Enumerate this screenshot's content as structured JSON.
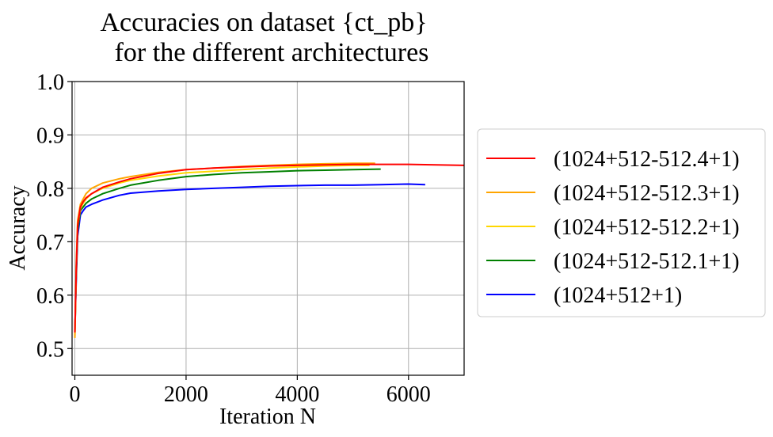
{
  "chart_data": {
    "type": "line",
    "title_lines": [
      "Accuracies on dataset {ct_pb}",
      "for the different architectures"
    ],
    "xlabel": "Iteration N",
    "ylabel": "Accuracy",
    "xlim": [
      -50,
      7000
    ],
    "ylim": [
      0.45,
      1.0
    ],
    "xticks": [
      0,
      2000,
      4000,
      6000
    ],
    "xtick_labels": [
      "0",
      "2000",
      "4000",
      "6000"
    ],
    "yticks": [
      0.5,
      0.6,
      0.7,
      0.8,
      0.9,
      1.0
    ],
    "ytick_labels": [
      "0.5",
      "0.6",
      "0.7",
      "0.8",
      "0.9",
      "1.0"
    ],
    "grid": true,
    "legend_position": "outside-right",
    "series": [
      {
        "name": "(1024+512-512.4+1)",
        "color": "#ff0000",
        "x": [
          0,
          25,
          50,
          100,
          150,
          200,
          300,
          500,
          800,
          1000,
          1500,
          2000,
          2500,
          3000,
          3500,
          4000,
          4500,
          5000,
          5500,
          6000,
          6500,
          7000
        ],
        "y": [
          0.53,
          0.65,
          0.73,
          0.765,
          0.775,
          0.782,
          0.79,
          0.802,
          0.812,
          0.818,
          0.828,
          0.835,
          0.838,
          0.84,
          0.842,
          0.843,
          0.844,
          0.845,
          0.845,
          0.845,
          0.844,
          0.843
        ]
      },
      {
        "name": "(1024+512-512.3+1)",
        "color": "#ffa500",
        "x": [
          0,
          25,
          50,
          100,
          150,
          200,
          300,
          500,
          800,
          1000,
          1500,
          2000,
          2500,
          3000,
          3500,
          4000,
          4500,
          5000,
          5400
        ],
        "y": [
          0.52,
          0.66,
          0.74,
          0.77,
          0.78,
          0.79,
          0.8,
          0.81,
          0.818,
          0.822,
          0.83,
          0.835,
          0.838,
          0.841,
          0.843,
          0.845,
          0.846,
          0.847,
          0.847
        ]
      },
      {
        "name": "(1024+512-512.2+1)",
        "color": "#ffd700",
        "x": [
          0,
          25,
          50,
          100,
          150,
          200,
          300,
          500,
          800,
          1000,
          1500,
          2000,
          2500,
          3000,
          3500,
          4000,
          4500,
          5000,
          5300
        ],
        "y": [
          0.52,
          0.65,
          0.73,
          0.762,
          0.772,
          0.78,
          0.79,
          0.8,
          0.81,
          0.815,
          0.823,
          0.829,
          0.832,
          0.835,
          0.838,
          0.84,
          0.842,
          0.843,
          0.843
        ]
      },
      {
        "name": "(1024+512-512.1+1)",
        "color": "#008000",
        "x": [
          0,
          25,
          50,
          100,
          150,
          200,
          300,
          500,
          800,
          1000,
          1500,
          2000,
          2500,
          3000,
          3500,
          4000,
          4500,
          5000,
          5500
        ],
        "y": [
          0.53,
          0.64,
          0.72,
          0.758,
          0.765,
          0.772,
          0.78,
          0.79,
          0.8,
          0.806,
          0.815,
          0.822,
          0.826,
          0.829,
          0.831,
          0.833,
          0.834,
          0.835,
          0.836
        ]
      },
      {
        "name": "(1024+512+1)",
        "color": "#0000ff",
        "x": [
          0,
          25,
          50,
          100,
          150,
          200,
          300,
          500,
          800,
          1000,
          1500,
          2000,
          2500,
          3000,
          3500,
          4000,
          4500,
          5000,
          5500,
          6000,
          6300
        ],
        "y": [
          0.53,
          0.63,
          0.71,
          0.75,
          0.758,
          0.765,
          0.77,
          0.778,
          0.787,
          0.791,
          0.795,
          0.798,
          0.8,
          0.802,
          0.804,
          0.805,
          0.806,
          0.806,
          0.807,
          0.808,
          0.807
        ]
      }
    ]
  }
}
